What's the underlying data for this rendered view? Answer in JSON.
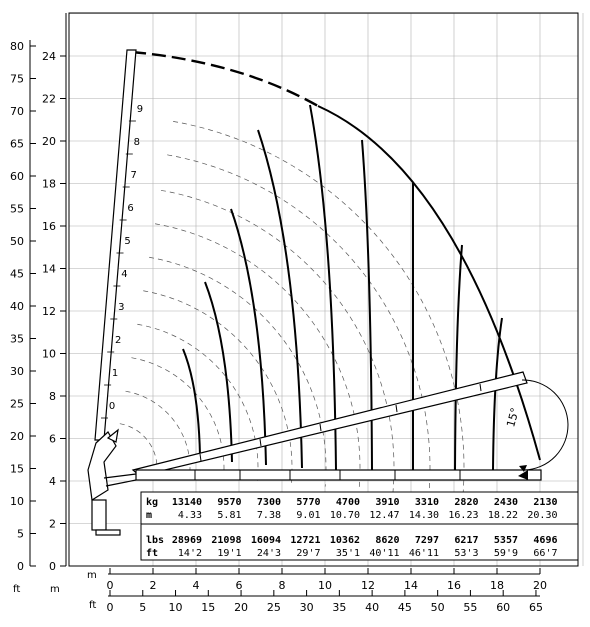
{
  "diagram": {
    "units": {
      "y_ft": "ft",
      "y_m": "m",
      "x_m": "m",
      "x_ft": "ft"
    },
    "y_ft_ticks": [
      "0",
      "5",
      "10",
      "15",
      "20",
      "25",
      "30",
      "35",
      "40",
      "45",
      "50",
      "55",
      "60",
      "65",
      "70",
      "75",
      "80"
    ],
    "y_m_ticks": [
      "0",
      "2",
      "4",
      "6",
      "8",
      "10",
      "12",
      "14",
      "16",
      "18",
      "20",
      "22",
      "24"
    ],
    "x_m_ticks": [
      "0",
      "2",
      "4",
      "6",
      "8",
      "10",
      "12",
      "14",
      "16",
      "18",
      "20"
    ],
    "x_ft_ticks": [
      "0",
      "5",
      "10",
      "15",
      "20",
      "25",
      "30",
      "35",
      "40",
      "45",
      "50",
      "55",
      "60",
      "65"
    ],
    "boom_angle_labels": [
      "0",
      "1",
      "2",
      "3",
      "4",
      "5",
      "6",
      "7",
      "8",
      "9"
    ],
    "angle_label": "15°",
    "colors": {
      "line": "#000000",
      "dash": "#555555",
      "grid": "#b0b0b0"
    }
  },
  "load_table": {
    "kg_label": "kg",
    "m_label": "m",
    "lbs_label": "lbs",
    "ft_label": "ft",
    "kg": [
      "13140",
      "9570",
      "7300",
      "5770",
      "4700",
      "3910",
      "3310",
      "2820",
      "2430",
      "2130"
    ],
    "m": [
      "4.33",
      "5.81",
      "7.38",
      "9.01",
      "10.70",
      "12.47",
      "14.30",
      "16.23",
      "18.22",
      "20.30"
    ],
    "lbs": [
      "28969",
      "21098",
      "16094",
      "12721",
      "10362",
      "8620",
      "7297",
      "6217",
      "5357",
      "4696"
    ],
    "ft": [
      "14'2",
      "19'1",
      "24'3",
      "29'7",
      "35'1",
      "40'11",
      "46'11",
      "53'3",
      "59'9",
      "66'7"
    ]
  }
}
